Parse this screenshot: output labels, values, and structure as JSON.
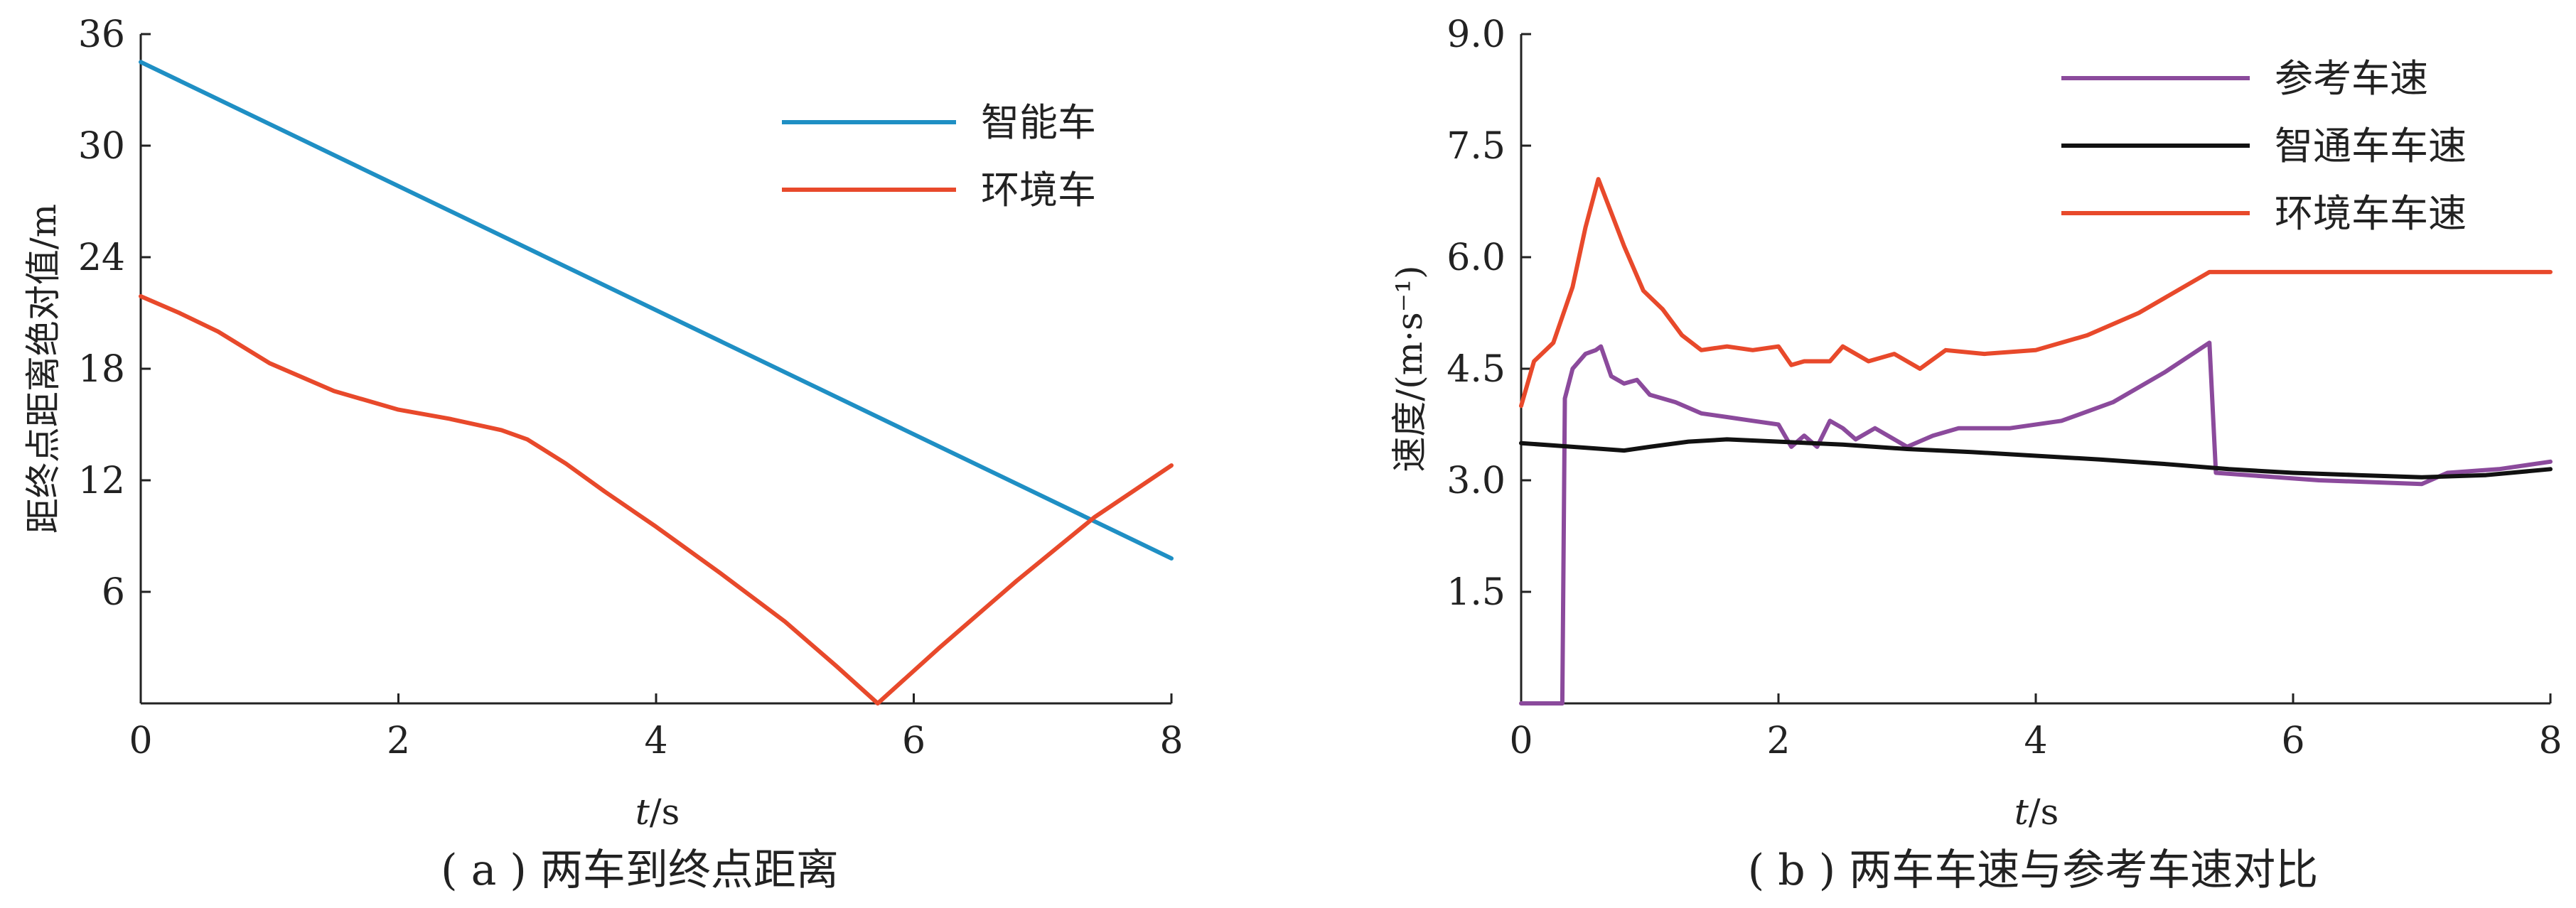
{
  "chart_data": [
    {
      "type": "line",
      "caption": "( a ) 两车到终点距离",
      "xlabel_var": "t",
      "xlabel_unit": "/s",
      "ylabel": "距终点距离绝对值/m",
      "xlim": [
        0,
        8
      ],
      "ylim": [
        0,
        36
      ],
      "x_ticks": [
        "0",
        "2",
        "4",
        "6",
        "8"
      ],
      "y_ticks": [
        "6",
        "12",
        "18",
        "24",
        "30",
        "36"
      ],
      "legend_position": "top-right",
      "series": [
        {
          "name": "智能车",
          "color": "#1f8fc4",
          "points": [
            [
              0.0,
              34.5
            ],
            [
              8.0,
              7.8
            ]
          ]
        },
        {
          "name": "环境车",
          "color": "#e8492b",
          "points": [
            [
              0.0,
              21.9
            ],
            [
              0.3,
              21.0
            ],
            [
              0.6,
              20.0
            ],
            [
              1.0,
              18.3
            ],
            [
              1.5,
              16.8
            ],
            [
              2.0,
              15.8
            ],
            [
              2.4,
              15.3
            ],
            [
              2.8,
              14.7
            ],
            [
              3.0,
              14.2
            ],
            [
              3.3,
              12.9
            ],
            [
              3.6,
              11.4
            ],
            [
              4.0,
              9.5
            ],
            [
              4.5,
              7.0
            ],
            [
              5.0,
              4.4
            ],
            [
              5.4,
              2.0
            ],
            [
              5.72,
              0.0
            ],
            [
              6.2,
              3.0
            ],
            [
              6.8,
              6.6
            ],
            [
              7.4,
              10.0
            ],
            [
              8.0,
              12.8
            ]
          ]
        }
      ]
    },
    {
      "type": "line",
      "caption": "( b ) 两车车速与参考车速对比",
      "xlabel_var": "t",
      "xlabel_unit": "/s",
      "ylabel": "速度/(m·s⁻¹)",
      "xlim": [
        0,
        8
      ],
      "ylim": [
        0,
        9
      ],
      "x_ticks": [
        "0",
        "2",
        "4",
        "6",
        "8"
      ],
      "y_ticks": [
        "1.5",
        "3.0",
        "4.5",
        "6.0",
        "7.5",
        "9.0"
      ],
      "legend_position": "top-right",
      "series": [
        {
          "name": "参考车速",
          "color": "#8b4a9c",
          "points": [
            [
              0.0,
              0.0
            ],
            [
              0.32,
              0.0
            ],
            [
              0.34,
              4.1
            ],
            [
              0.4,
              4.5
            ],
            [
              0.5,
              4.7
            ],
            [
              0.58,
              4.75
            ],
            [
              0.62,
              4.8
            ],
            [
              0.7,
              4.4
            ],
            [
              0.8,
              4.3
            ],
            [
              0.9,
              4.35
            ],
            [
              1.0,
              4.15
            ],
            [
              1.2,
              4.05
            ],
            [
              1.4,
              3.9
            ],
            [
              1.6,
              3.85
            ],
            [
              1.8,
              3.8
            ],
            [
              2.0,
              3.75
            ],
            [
              2.1,
              3.45
            ],
            [
              2.2,
              3.6
            ],
            [
              2.3,
              3.45
            ],
            [
              2.4,
              3.8
            ],
            [
              2.5,
              3.7
            ],
            [
              2.6,
              3.55
            ],
            [
              2.75,
              3.7
            ],
            [
              2.9,
              3.55
            ],
            [
              3.0,
              3.45
            ],
            [
              3.2,
              3.6
            ],
            [
              3.4,
              3.7
            ],
            [
              3.8,
              3.7
            ],
            [
              4.2,
              3.8
            ],
            [
              4.6,
              4.05
            ],
            [
              5.0,
              4.45
            ],
            [
              5.35,
              4.85
            ],
            [
              5.4,
              3.1
            ],
            [
              5.8,
              3.05
            ],
            [
              6.2,
              3.0
            ],
            [
              7.0,
              2.95
            ],
            [
              7.2,
              3.1
            ],
            [
              7.6,
              3.15
            ],
            [
              8.0,
              3.25
            ]
          ]
        },
        {
          "name": "智通车车速",
          "color": "#111111",
          "points": [
            [
              0.0,
              3.5
            ],
            [
              0.4,
              3.45
            ],
            [
              0.8,
              3.4
            ],
            [
              1.0,
              3.45
            ],
            [
              1.3,
              3.52
            ],
            [
              1.6,
              3.55
            ],
            [
              2.0,
              3.52
            ],
            [
              2.5,
              3.48
            ],
            [
              3.0,
              3.42
            ],
            [
              3.5,
              3.38
            ],
            [
              4.0,
              3.33
            ],
            [
              4.5,
              3.28
            ],
            [
              5.0,
              3.22
            ],
            [
              5.5,
              3.15
            ],
            [
              6.0,
              3.1
            ],
            [
              6.5,
              3.07
            ],
            [
              7.0,
              3.04
            ],
            [
              7.5,
              3.07
            ],
            [
              8.0,
              3.15
            ]
          ]
        },
        {
          "name": "环境车车速",
          "color": "#e8492b",
          "points": [
            [
              0.0,
              4.0
            ],
            [
              0.1,
              4.6
            ],
            [
              0.25,
              4.85
            ],
            [
              0.4,
              5.6
            ],
            [
              0.5,
              6.4
            ],
            [
              0.6,
              7.05
            ],
            [
              0.7,
              6.6
            ],
            [
              0.8,
              6.15
            ],
            [
              0.95,
              5.55
            ],
            [
              1.1,
              5.3
            ],
            [
              1.25,
              4.95
            ],
            [
              1.4,
              4.75
            ],
            [
              1.6,
              4.8
            ],
            [
              1.8,
              4.75
            ],
            [
              2.0,
              4.8
            ],
            [
              2.1,
              4.55
            ],
            [
              2.2,
              4.6
            ],
            [
              2.4,
              4.6
            ],
            [
              2.5,
              4.8
            ],
            [
              2.7,
              4.6
            ],
            [
              2.9,
              4.7
            ],
            [
              3.1,
              4.5
            ],
            [
              3.3,
              4.75
            ],
            [
              3.6,
              4.7
            ],
            [
              4.0,
              4.75
            ],
            [
              4.4,
              4.95
            ],
            [
              4.8,
              5.25
            ],
            [
              5.35,
              5.8
            ],
            [
              8.0,
              5.8
            ]
          ]
        }
      ]
    }
  ]
}
